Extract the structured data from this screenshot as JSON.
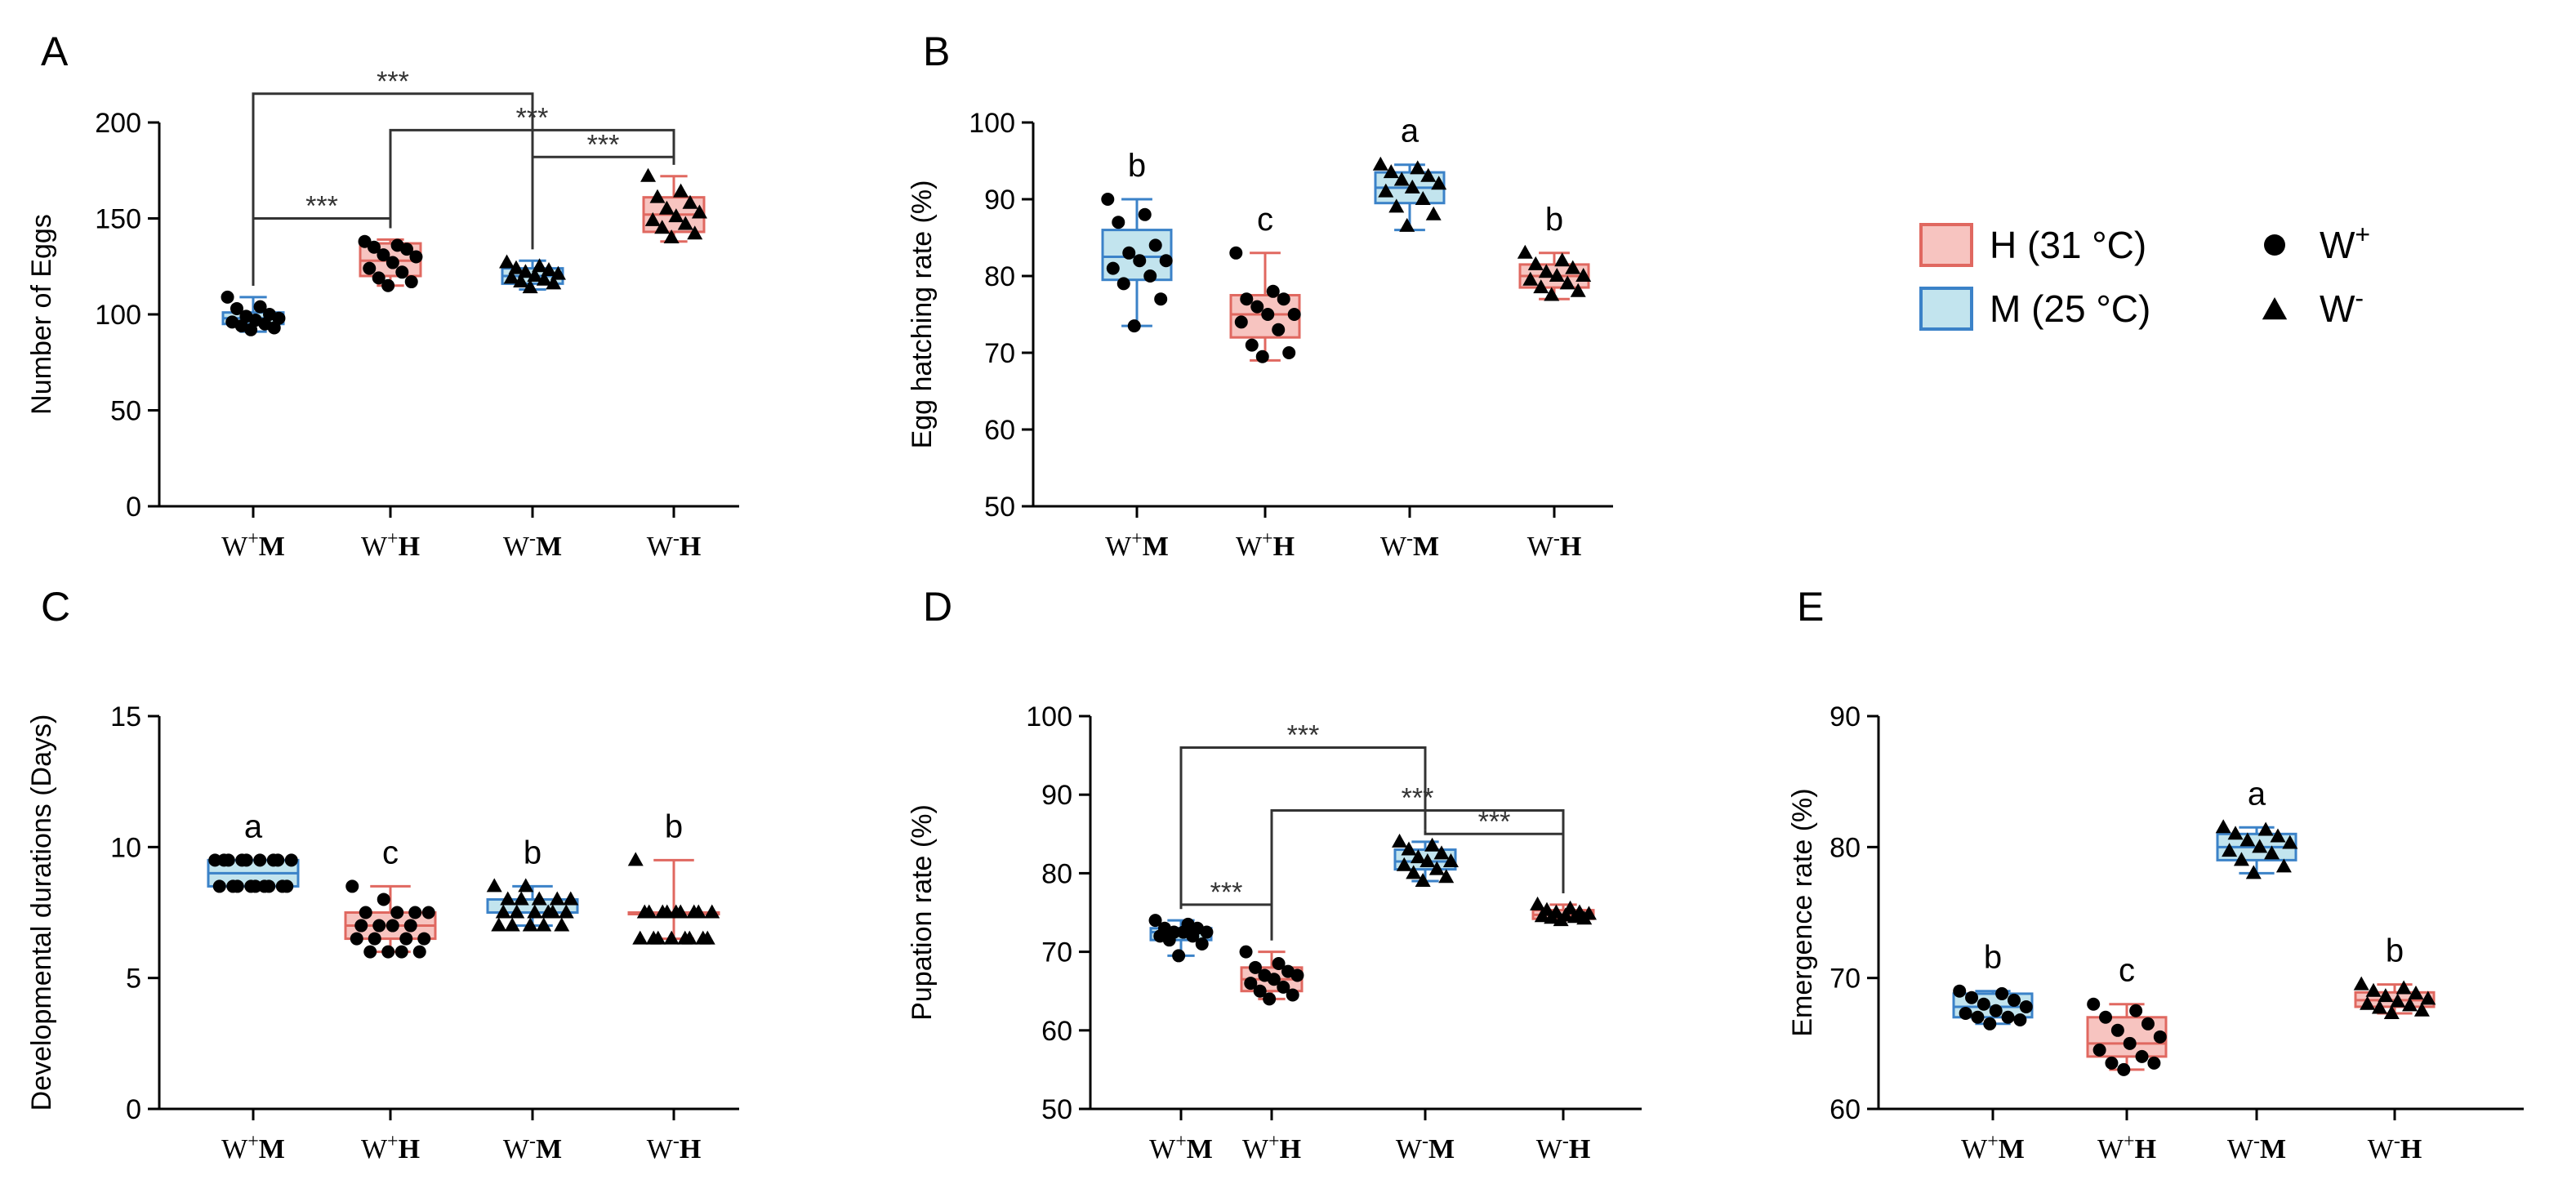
{
  "legend": {
    "groups": [
      {
        "label": "H (31 °C)",
        "fill": "#f7c4c0",
        "stroke": "#e06860"
      },
      {
        "label": "M (25 °C)",
        "fill": "#c2e4ee",
        "stroke": "#3b82c8"
      }
    ],
    "markers": [
      {
        "shape": "circle",
        "label": "W",
        "sup": "+"
      },
      {
        "shape": "triangle",
        "label": "W",
        "sup": "-"
      }
    ]
  },
  "x_categories": [
    {
      "base": "W",
      "sup": "+",
      "cond": "M",
      "color": "blue",
      "marker": "circle"
    },
    {
      "base": "W",
      "sup": "+",
      "cond": "H",
      "color": "red",
      "marker": "circle"
    },
    {
      "base": "W",
      "sup": "-",
      "cond": "M",
      "color": "blue",
      "marker": "triangle"
    },
    {
      "base": "W",
      "sup": "-",
      "cond": "H",
      "color": "red",
      "marker": "triangle"
    }
  ],
  "colors": {
    "blue_fill": "#c2e4ee",
    "blue_stroke": "#3b82c8",
    "red_fill": "#f7c4c0",
    "red_stroke": "#e06860",
    "axis": "#000000",
    "sig": "#333333"
  },
  "chart_data": [
    {
      "panel": "A",
      "type": "box",
      "ylabel": "Number of Eggs",
      "ylim": [
        0,
        200
      ],
      "yticks": [
        0,
        50,
        100,
        150,
        200
      ],
      "boxes": [
        {
          "min": 91,
          "q1": 95,
          "median": 98,
          "q3": 101,
          "max": 109,
          "points": [
            109,
            104,
            103,
            100,
            99,
            98,
            97,
            96,
            95,
            94,
            93,
            92
          ]
        },
        {
          "min": 115,
          "q1": 120,
          "median": 128,
          "q3": 137,
          "max": 139,
          "points": [
            138,
            136,
            135,
            134,
            131,
            130,
            127,
            124,
            122,
            119,
            117,
            115
          ]
        },
        {
          "min": 113,
          "q1": 116,
          "median": 120,
          "q3": 124,
          "max": 128,
          "points": [
            127,
            125,
            124,
            123,
            122,
            121,
            120,
            119,
            118,
            117,
            116,
            114
          ]
        },
        {
          "min": 138,
          "q1": 143,
          "median": 152,
          "q3": 161,
          "max": 172,
          "points": [
            172,
            164,
            161,
            158,
            155,
            153,
            151,
            149,
            147,
            145,
            142,
            140
          ]
        }
      ],
      "significance": [
        {
          "from": 0,
          "to": 2,
          "y": 215,
          "label": "***"
        },
        {
          "from": 1,
          "to": 3,
          "y": 196,
          "label": "***"
        },
        {
          "from": 2,
          "to": 3,
          "y": 182,
          "label": "***"
        },
        {
          "from": 0,
          "to": 1,
          "y": 150,
          "label": "***"
        }
      ]
    },
    {
      "panel": "B",
      "type": "box",
      "ylabel": "Egg hatching rate (%)",
      "ylim": [
        50,
        100
      ],
      "yticks": [
        50,
        60,
        70,
        80,
        90,
        100
      ],
      "letters": [
        "b",
        "c",
        "a",
        "b"
      ],
      "boxes": [
        {
          "min": 73.5,
          "q1": 79.5,
          "median": 82.5,
          "q3": 86,
          "max": 90,
          "points": [
            90,
            88,
            87,
            84,
            83,
            82,
            82,
            81,
            80,
            79,
            77,
            73.5
          ]
        },
        {
          "min": 69,
          "q1": 72,
          "median": 75,
          "q3": 77.5,
          "max": 83,
          "points": [
            83,
            78,
            77,
            77,
            76,
            75,
            75,
            74,
            73,
            71,
            70,
            69.5
          ]
        },
        {
          "min": 86,
          "q1": 89.5,
          "median": 91.5,
          "q3": 93.5,
          "max": 94.5,
          "points": [
            94.5,
            94,
            93.5,
            93,
            92.5,
            92,
            91.5,
            91,
            90,
            89,
            88,
            86.5
          ]
        },
        {
          "min": 77,
          "q1": 78.5,
          "median": 80,
          "q3": 81.5,
          "max": 83,
          "points": [
            83,
            82,
            81.5,
            81,
            80.5,
            80,
            80,
            79.5,
            79,
            78.5,
            78,
            77.5
          ]
        }
      ]
    },
    {
      "panel": "C",
      "type": "box",
      "ylabel": "Developmental durations (Days)",
      "ylim": [
        0,
        15
      ],
      "yticks": [
        0,
        5,
        10,
        15
      ],
      "letters": [
        "a",
        "c",
        "b",
        "b"
      ],
      "boxes": [
        {
          "min": 8.5,
          "q1": 8.5,
          "median": 9,
          "q3": 9.5,
          "max": 9.5,
          "points": [
            9.5,
            9.5,
            9.5,
            9.5,
            9.5,
            9.5,
            9.5,
            9.5,
            9.5,
            8.5,
            8.5,
            8.5,
            8.5,
            8.5,
            8.5,
            8.5,
            8.5,
            8.5
          ]
        },
        {
          "min": 6,
          "q1": 6.5,
          "median": 7,
          "q3": 7.5,
          "max": 8.5,
          "points": [
            8.5,
            8,
            7.5,
            7.5,
            7.5,
            7.5,
            7,
            7,
            7,
            7,
            6.5,
            6.5,
            6.5,
            6.5,
            6,
            6,
            6,
            6
          ]
        },
        {
          "min": 7,
          "q1": 7.5,
          "median": 7.5,
          "q3": 8,
          "max": 8.5,
          "points": [
            8.5,
            8.5,
            8,
            8,
            8,
            8,
            8,
            7.5,
            7.5,
            7.5,
            7.5,
            7.5,
            7.5,
            7,
            7,
            7,
            7,
            7
          ]
        },
        {
          "min": 6.5,
          "q1": 7.5,
          "median": 7.5,
          "q3": 7.5,
          "max": 9.5,
          "points": [
            9.5,
            7.5,
            7.5,
            7.5,
            7.5,
            7.5,
            7.5,
            7.5,
            7.5,
            7.5,
            6.5,
            6.5,
            6.5,
            6.5,
            6.5,
            6.5,
            6.5,
            6.5
          ]
        }
      ]
    },
    {
      "panel": "D",
      "type": "box",
      "ylabel": "Pupation rate (%)",
      "ylim": [
        50,
        100
      ],
      "yticks": [
        50,
        60,
        70,
        80,
        90,
        100
      ],
      "boxes": [
        {
          "min": 69.5,
          "q1": 71.5,
          "median": 72.5,
          "q3": 73,
          "max": 74,
          "points": [
            74,
            73.5,
            73,
            73,
            72.5,
            72.5,
            72.5,
            72,
            72,
            71.5,
            71,
            69.5
          ]
        },
        {
          "min": 64,
          "q1": 65,
          "median": 66.5,
          "q3": 68,
          "max": 70,
          "points": [
            70,
            68.5,
            68,
            67.5,
            67,
            67,
            66.5,
            66,
            65.5,
            65,
            64.5,
            64
          ]
        },
        {
          "min": 79,
          "q1": 80.5,
          "median": 81.5,
          "q3": 83,
          "max": 84,
          "points": [
            84,
            83.5,
            83,
            82.5,
            82,
            81.5,
            81.5,
            81,
            80.5,
            80,
            79.5,
            79
          ]
        },
        {
          "min": 74,
          "q1": 74.2,
          "median": 74.7,
          "q3": 75.3,
          "max": 76,
          "points": [
            76,
            75.5,
            75.3,
            75,
            75,
            74.8,
            74.6,
            74.5,
            74.4,
            74.3,
            74.2,
            74
          ]
        }
      ],
      "significance": [
        {
          "from": 0,
          "to": 2,
          "y": 96,
          "label": "***"
        },
        {
          "from": 1,
          "to": 3,
          "y": 88,
          "label": "***"
        },
        {
          "from": 2,
          "to": 3,
          "y": 85,
          "label": "***"
        },
        {
          "from": 0,
          "to": 1,
          "y": 76,
          "label": "***"
        }
      ]
    },
    {
      "panel": "E",
      "type": "box",
      "ylabel": "Emergence rate (%)",
      "ylim": [
        60,
        90
      ],
      "yticks": [
        60,
        70,
        80,
        90
      ],
      "letters": [
        "b",
        "c",
        "a",
        "b"
      ],
      "boxes": [
        {
          "min": 66.5,
          "q1": 67,
          "median": 67.8,
          "q3": 68.8,
          "max": 69,
          "points": [
            69,
            68.8,
            68.5,
            68.3,
            68,
            67.8,
            67.5,
            67.3,
            67,
            67,
            66.8,
            66.5
          ]
        },
        {
          "min": 63,
          "q1": 64,
          "median": 65,
          "q3": 67,
          "max": 68,
          "points": [
            68,
            67.5,
            67,
            66.5,
            66,
            65.5,
            65,
            64.5,
            64,
            63.5,
            63.5,
            63
          ]
        },
        {
          "min": 78,
          "q1": 79,
          "median": 80,
          "q3": 81,
          "max": 81.5,
          "points": [
            81.5,
            81.3,
            81,
            80.8,
            80.5,
            80.3,
            80,
            79.7,
            79.5,
            79,
            78.5,
            78
          ]
        },
        {
          "min": 67.3,
          "q1": 67.8,
          "median": 68.3,
          "q3": 68.9,
          "max": 69.5,
          "points": [
            69.5,
            69.2,
            69,
            68.8,
            68.6,
            68.4,
            68.2,
            68,
            67.9,
            67.7,
            67.5,
            67.3
          ]
        }
      ]
    }
  ]
}
